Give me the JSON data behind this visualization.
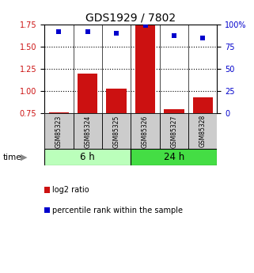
{
  "title": "GDS1929 / 7802",
  "samples": [
    "GSM85323",
    "GSM85324",
    "GSM85325",
    "GSM85326",
    "GSM85327",
    "GSM85328"
  ],
  "log2_ratio": [
    0.765,
    1.2,
    1.03,
    1.745,
    0.8,
    0.935
  ],
  "percentile_rank": [
    92,
    92,
    90,
    99,
    88,
    85
  ],
  "bar_color": "#cc1111",
  "dot_color": "#0000cc",
  "ylim_left": [
    0.75,
    1.75
  ],
  "ylim_right": [
    0,
    100
  ],
  "yticks_left": [
    0.75,
    1.0,
    1.25,
    1.5,
    1.75
  ],
  "yticks_right": [
    0,
    25,
    50,
    75,
    100
  ],
  "ytick_labels_right": [
    "0",
    "25",
    "50",
    "75",
    "100%"
  ],
  "dotted_lines": [
    1.0,
    1.25,
    1.5
  ],
  "groups": [
    {
      "label": "6 h",
      "indices": [
        0,
        1,
        2
      ],
      "color": "#bbffbb"
    },
    {
      "label": "24 h",
      "indices": [
        3,
        4,
        5
      ],
      "color": "#44dd44"
    }
  ],
  "legend": [
    {
      "label": "log2 ratio",
      "color": "#cc1111"
    },
    {
      "label": "percentile rank within the sample",
      "color": "#0000cc"
    }
  ],
  "bar_bottom": 0.75,
  "background_color": "#ffffff",
  "sample_box_color": "#cccccc",
  "bar_width": 0.7
}
